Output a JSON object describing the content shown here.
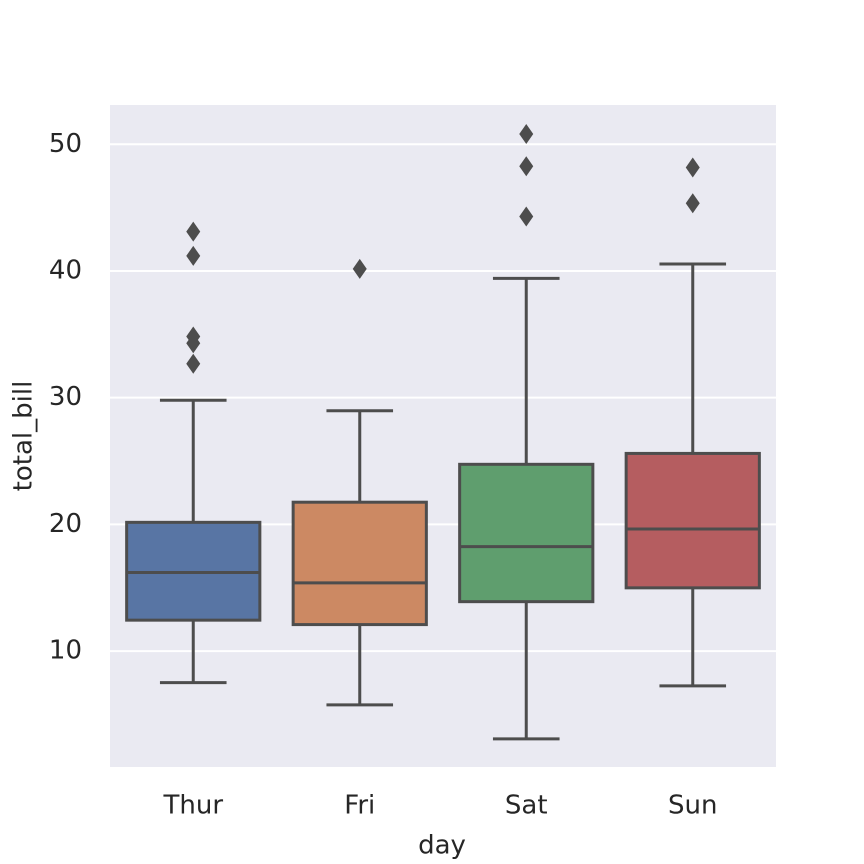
{
  "chart_data": {
    "type": "box",
    "x_label": "day",
    "y_label": "total_bill",
    "categories": [
      "Thur",
      "Fri",
      "Sat",
      "Sun"
    ],
    "colors": [
      "#5875a4",
      "#cc8963",
      "#5f9e6e",
      "#b55d60"
    ],
    "boxes": [
      {
        "whislo": 7.51,
        "q1": 12.44,
        "median": 16.2,
        "q3": 20.16,
        "whishi": 29.8,
        "fliers": [
          32.68,
          34.3,
          34.83,
          41.19,
          43.11
        ]
      },
      {
        "whislo": 5.75,
        "q1": 12.09,
        "median": 15.38,
        "q3": 21.75,
        "whishi": 28.97,
        "fliers": [
          40.17
        ]
      },
      {
        "whislo": 3.07,
        "q1": 13.9,
        "median": 18.24,
        "q3": 24.74,
        "whishi": 39.42,
        "fliers": [
          44.3,
          48.27,
          50.81
        ]
      },
      {
        "whislo": 7.25,
        "q1": 14.99,
        "median": 19.63,
        "q3": 25.6,
        "whishi": 40.55,
        "fliers": [
          45.35,
          48.17
        ]
      }
    ],
    "ylim": [
      0.85,
      53.1
    ],
    "yticks": [
      10,
      20,
      30,
      40,
      50
    ],
    "grid": true
  }
}
